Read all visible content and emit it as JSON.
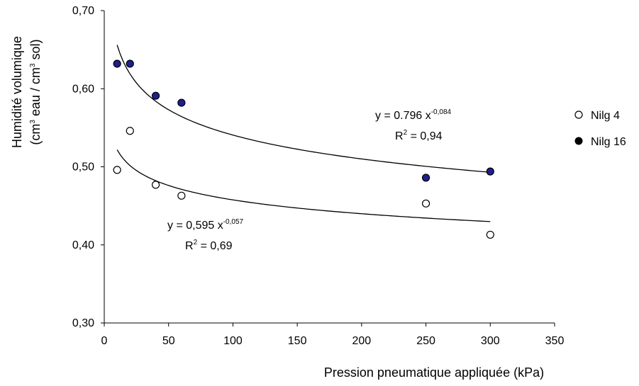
{
  "chart_data": {
    "type": "scatter",
    "xlabel": "Pression pneumatique appliquée (kPa)",
    "ylabel": {
      "line1": "Humidité volumique",
      "line2": {
        "open": "(cm",
        "sup1": "3",
        "mid": " eau / cm",
        "sup2": "3",
        "close": " sol)"
      }
    },
    "xlim": [
      0,
      350
    ],
    "ylim": [
      0.3,
      0.7
    ],
    "xticks": [
      0,
      50,
      100,
      150,
      200,
      250,
      300,
      350
    ],
    "xtick_labels": [
      "0",
      "50",
      "100",
      "150",
      "200",
      "250",
      "300",
      "350"
    ],
    "yticks": [
      0.3,
      0.4,
      0.5,
      0.6,
      0.7
    ],
    "ytick_labels": [
      "0,30",
      "0,40",
      "0,50",
      "0,60",
      "0,70"
    ],
    "grid": false,
    "legend_position": "right",
    "series": [
      {
        "name": "Nilg 4",
        "marker": "open-circle",
        "marker_color": "#ffffff",
        "x": [
          10,
          20,
          40,
          60,
          250,
          300
        ],
        "y": [
          0.496,
          0.546,
          0.477,
          0.463,
          0.453,
          0.413
        ],
        "fit": {
          "a": 0.595,
          "b": -0.057,
          "x_range": [
            10,
            300
          ],
          "equation": {
            "prefix": "y = 0,595 x",
            "exponent": "-0,057"
          },
          "r2": {
            "prefix": "R",
            "sup": "2",
            "value": " = 0,69"
          }
        }
      },
      {
        "name": "Nilg 16",
        "marker": "filled-circle",
        "marker_color": "#1f1f8f",
        "x": [
          10,
          20,
          40,
          60,
          250,
          300
        ],
        "y": [
          0.632,
          0.632,
          0.591,
          0.582,
          0.486,
          0.494
        ],
        "fit": {
          "a": 0.796,
          "b": -0.084,
          "x_range": [
            10,
            300
          ],
          "equation": {
            "prefix": "y = 0.796 x",
            "exponent": "-0,084"
          },
          "r2": {
            "prefix": "R",
            "sup": "2",
            "value": " = 0,94"
          }
        }
      }
    ]
  }
}
